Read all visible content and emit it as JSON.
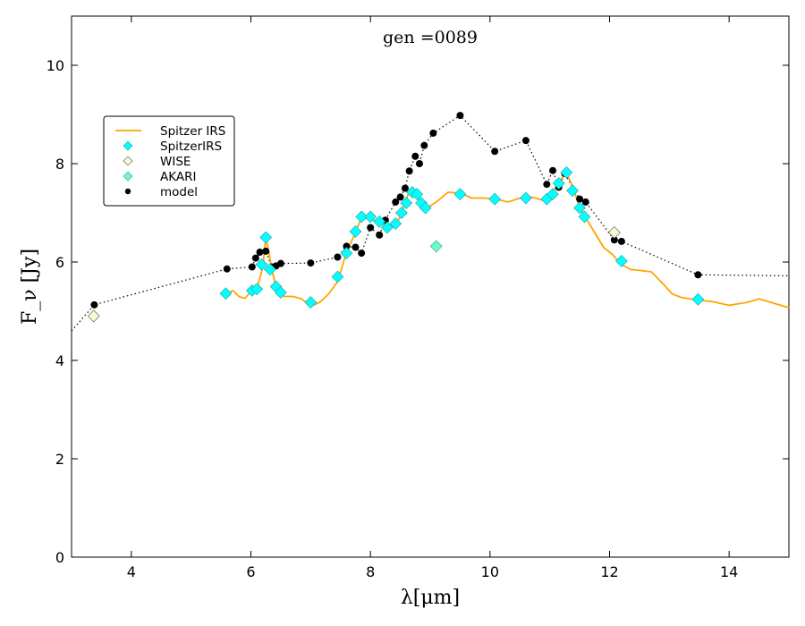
{
  "chart_data": {
    "type": "scatter",
    "title": "gen =0089",
    "xlabel": "λ[μm]",
    "ylabel": "F_ν [Jy]",
    "xlim": [
      3,
      15
    ],
    "ylim": [
      0,
      11
    ],
    "xticks": [
      4,
      6,
      8,
      10,
      12,
      14
    ],
    "yticks": [
      0,
      2,
      4,
      6,
      8,
      10
    ],
    "legend_position": "upper-left",
    "colors": {
      "irs_line": "#ffa500",
      "irs_points": "#00ffff",
      "wise": "#fafad2",
      "akari": "#66ffcc",
      "model": "#000000"
    },
    "series": [
      {
        "name": "Spitzer IRS",
        "kind": "line",
        "points": [
          [
            5.6,
            5.36
          ],
          [
            5.7,
            5.42
          ],
          [
            5.8,
            5.3
          ],
          [
            5.9,
            5.26
          ],
          [
            6.0,
            5.4
          ],
          [
            6.1,
            5.45
          ],
          [
            6.2,
            5.9
          ],
          [
            6.25,
            6.5
          ],
          [
            6.3,
            6.2
          ],
          [
            6.35,
            5.85
          ],
          [
            6.4,
            5.6
          ],
          [
            6.45,
            5.45
          ],
          [
            6.55,
            5.3
          ],
          [
            6.7,
            5.3
          ],
          [
            6.85,
            5.25
          ],
          [
            7.0,
            5.1
          ],
          [
            7.15,
            5.18
          ],
          [
            7.3,
            5.35
          ],
          [
            7.45,
            5.6
          ],
          [
            7.6,
            6.2
          ],
          [
            7.75,
            6.6
          ],
          [
            7.85,
            6.9
          ],
          [
            8.0,
            6.88
          ],
          [
            8.15,
            6.8
          ],
          [
            8.3,
            6.72
          ],
          [
            8.45,
            6.8
          ],
          [
            8.55,
            7.1
          ],
          [
            8.65,
            7.45
          ],
          [
            8.75,
            7.38
          ],
          [
            8.85,
            7.2
          ],
          [
            8.95,
            7.1
          ],
          [
            9.1,
            7.22
          ],
          [
            9.3,
            7.42
          ],
          [
            9.5,
            7.4
          ],
          [
            9.7,
            7.3
          ],
          [
            9.9,
            7.3
          ],
          [
            10.1,
            7.28
          ],
          [
            10.3,
            7.22
          ],
          [
            10.5,
            7.3
          ],
          [
            10.7,
            7.32
          ],
          [
            10.9,
            7.25
          ],
          [
            11.05,
            7.42
          ],
          [
            11.2,
            7.7
          ],
          [
            11.28,
            7.8
          ],
          [
            11.38,
            7.55
          ],
          [
            11.5,
            7.1
          ],
          [
            11.6,
            6.9
          ],
          [
            11.75,
            6.6
          ],
          [
            11.9,
            6.3
          ],
          [
            12.05,
            6.15
          ],
          [
            12.2,
            5.95
          ],
          [
            12.35,
            5.85
          ],
          [
            12.5,
            5.83
          ],
          [
            12.7,
            5.8
          ],
          [
            12.9,
            5.55
          ],
          [
            13.05,
            5.35
          ],
          [
            13.2,
            5.28
          ],
          [
            13.5,
            5.22
          ],
          [
            13.7,
            5.2
          ],
          [
            14.0,
            5.12
          ],
          [
            14.3,
            5.18
          ],
          [
            14.5,
            5.25
          ],
          [
            14.7,
            5.18
          ],
          [
            15.0,
            5.07
          ]
        ]
      },
      {
        "name": "SpitzerIRS",
        "kind": "markers",
        "marker": "diamond",
        "points": [
          [
            5.58,
            5.36
          ],
          [
            6.02,
            5.42
          ],
          [
            6.1,
            5.45
          ],
          [
            6.18,
            5.95
          ],
          [
            6.25,
            6.5
          ],
          [
            6.32,
            5.85
          ],
          [
            6.42,
            5.5
          ],
          [
            6.5,
            5.38
          ],
          [
            7.0,
            5.18
          ],
          [
            7.45,
            5.7
          ],
          [
            7.6,
            6.18
          ],
          [
            7.75,
            6.62
          ],
          [
            7.85,
            6.92
          ],
          [
            8.0,
            6.92
          ],
          [
            8.15,
            6.82
          ],
          [
            8.28,
            6.7
          ],
          [
            8.42,
            6.78
          ],
          [
            8.52,
            7.0
          ],
          [
            8.6,
            7.2
          ],
          [
            8.7,
            7.42
          ],
          [
            8.78,
            7.38
          ],
          [
            8.85,
            7.2
          ],
          [
            8.92,
            7.1
          ],
          [
            9.5,
            7.38
          ],
          [
            10.08,
            7.28
          ],
          [
            10.6,
            7.3
          ],
          [
            10.95,
            7.28
          ],
          [
            11.05,
            7.38
          ],
          [
            11.15,
            7.6
          ],
          [
            11.28,
            7.82
          ],
          [
            11.38,
            7.45
          ],
          [
            11.5,
            7.1
          ],
          [
            11.58,
            6.92
          ],
          [
            12.2,
            6.02
          ],
          [
            13.48,
            5.24
          ]
        ]
      },
      {
        "name": "WISE",
        "kind": "markers",
        "marker": "diamond",
        "points": [
          [
            3.37,
            4.9
          ],
          [
            12.08,
            6.6
          ]
        ]
      },
      {
        "name": "AKARI",
        "kind": "markers",
        "marker": "diamond",
        "points": [
          [
            9.1,
            6.32
          ]
        ]
      },
      {
        "name": "model",
        "kind": "dotted-line-with-points",
        "points": [
          [
            3.0,
            4.6
          ],
          [
            3.38,
            5.13
          ],
          [
            5.6,
            5.86
          ],
          [
            6.02,
            5.9
          ],
          [
            6.08,
            6.08
          ],
          [
            6.15,
            6.2
          ],
          [
            6.25,
            6.22
          ],
          [
            6.35,
            5.9
          ],
          [
            6.42,
            5.92
          ],
          [
            6.5,
            5.97
          ],
          [
            7.0,
            5.98
          ],
          [
            7.45,
            6.1
          ],
          [
            7.6,
            6.32
          ],
          [
            7.75,
            6.3
          ],
          [
            7.85,
            6.18
          ],
          [
            8.0,
            6.7
          ],
          [
            8.15,
            6.55
          ],
          [
            8.25,
            6.85
          ],
          [
            8.42,
            7.22
          ],
          [
            8.5,
            7.32
          ],
          [
            8.58,
            7.5
          ],
          [
            8.65,
            7.85
          ],
          [
            8.75,
            8.15
          ],
          [
            8.82,
            8.0
          ],
          [
            8.9,
            8.37
          ],
          [
            9.05,
            8.62
          ],
          [
            9.5,
            8.98
          ],
          [
            10.08,
            8.25
          ],
          [
            10.6,
            8.47
          ],
          [
            10.95,
            7.58
          ],
          [
            11.05,
            7.86
          ],
          [
            11.15,
            7.52
          ],
          [
            11.25,
            7.8
          ],
          [
            11.5,
            7.28
          ],
          [
            11.6,
            7.22
          ],
          [
            12.08,
            6.45
          ],
          [
            12.2,
            6.42
          ],
          [
            13.48,
            5.74
          ],
          [
            15.0,
            5.72
          ]
        ],
        "point_indices_excluded": [
          0,
          38
        ]
      }
    ]
  }
}
